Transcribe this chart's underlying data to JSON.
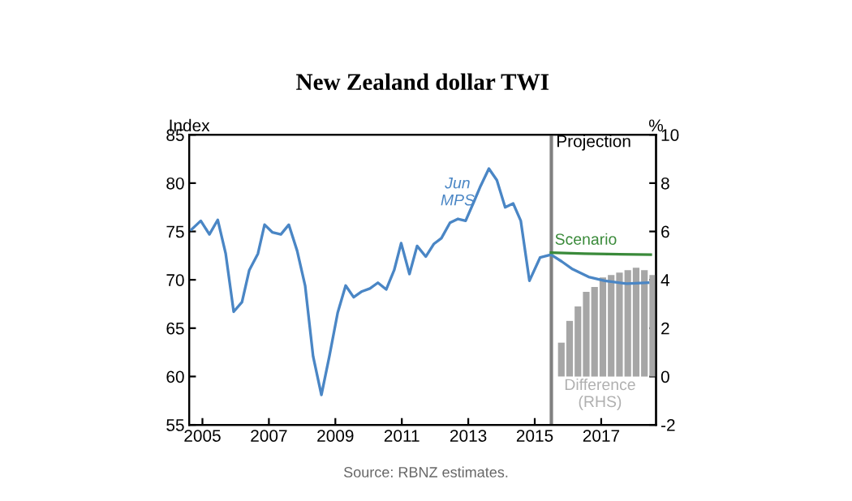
{
  "chart_data": {
    "type": "line",
    "title": "New Zealand dollar TWI",
    "ylabel": "Index",
    "y2label": "%",
    "series": [
      {
        "color": "#4a86c5",
        "x": [
          2004.67,
          2004.95,
          2005.21,
          2005.46,
          2005.7,
          2005.94,
          2006.19,
          2006.41,
          2006.67,
          2006.87,
          2007.11,
          2007.36,
          2007.6,
          2007.85,
          2008.09,
          2008.33,
          2008.58,
          2008.82,
          2009.07,
          2009.31,
          2009.55,
          2009.8,
          2010.04,
          2010.28,
          2010.53,
          2010.77,
          2010.98,
          2011.23,
          2011.46,
          2011.72,
          2011.96,
          2012.19,
          2012.45,
          2012.69,
          2012.92,
          2013.16,
          2013.37,
          2013.62,
          2013.86,
          2014.11,
          2014.35,
          2014.58,
          2014.84,
          2015.16,
          2015.49,
          2015.81,
          2016.14,
          2016.62,
          2017.11,
          2017.76,
          2018.41
        ],
        "values": [
          75.2,
          76.1,
          74.7,
          76.2,
          72.7,
          66.7,
          67.7,
          71.0,
          72.7,
          75.7,
          74.9,
          74.7,
          75.7,
          73.0,
          69.4,
          62.1,
          58.1,
          62.1,
          66.6,
          69.4,
          68.2,
          68.8,
          69.1,
          69.7,
          69.0,
          71.0,
          73.8,
          70.6,
          73.5,
          72.4,
          73.7,
          74.3,
          75.9,
          76.3,
          76.1,
          78.0,
          79.7,
          81.5,
          80.3,
          77.5,
          77.9,
          76.1,
          69.9,
          72.3,
          72.6,
          71.9,
          71.1,
          70.3,
          69.9,
          69.6,
          69.7
        ]
      },
      {
        "color": "#3a8a3a",
        "x": [
          2015.49,
          2016.5,
          2018.49
        ],
        "values": [
          72.8,
          72.7,
          72.6
        ]
      },
      {
        "type": "bar",
        "axis": "y2",
        "color": "#a6a6a6",
        "x": [
          2015.8,
          2016.05,
          2016.3,
          2016.55,
          2016.8,
          2017.05,
          2017.3,
          2017.55,
          2017.8,
          2018.05,
          2018.3,
          2018.55
        ],
        "values": [
          1.4,
          2.3,
          2.9,
          3.5,
          3.7,
          4.1,
          4.2,
          4.3,
          4.4,
          4.5,
          4.4,
          4.2
        ]
      }
    ],
    "xlim": [
      2004.6,
      2018.65
    ],
    "xticks": [
      2005,
      2007,
      2009,
      2011,
      2013,
      2015,
      2017
    ],
    "ylim": [
      55,
      85
    ],
    "yticks": [
      55,
      60,
      65,
      70,
      75,
      80,
      85
    ],
    "y2lim": [
      -2,
      10
    ],
    "y2ticks": [
      -2,
      0,
      2,
      4,
      6,
      8,
      10
    ],
    "ref_lines": [
      {
        "axis": "x",
        "value": 2015.5,
        "label": "Projection",
        "color": "#808080"
      }
    ],
    "annotations": [
      "Jun MPS",
      {
        "text": "Scenario",
        "x": 2015.6,
        "y": 73.3
      },
      "Difference (RHS)",
      "Source: RBNZ estimates."
    ],
    "grid": false,
    "legend": false
  }
}
